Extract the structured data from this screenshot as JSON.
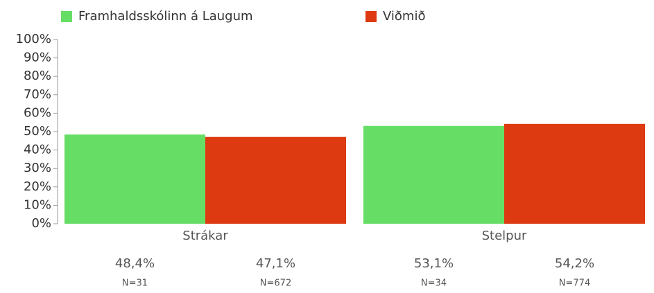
{
  "chart_data": {
    "type": "bar",
    "categories": [
      "Strákar",
      "Stelpur"
    ],
    "series": [
      {
        "name": "Framhaldsskólinn á Laugum",
        "color": "#66de66",
        "values": [
          48.4,
          53.1
        ],
        "value_labels": [
          "48,4%",
          "53,1%"
        ],
        "n_labels": [
          "N=31",
          "N=34"
        ]
      },
      {
        "name": "Viðmið",
        "color": "#dd3a12",
        "values": [
          47.1,
          54.2
        ],
        "value_labels": [
          "47,1%",
          "54,2%"
        ],
        "n_labels": [
          "N=672",
          "N=774"
        ]
      }
    ],
    "ylim": [
      0,
      100
    ],
    "yticks": [
      {
        "value": 0,
        "label": "0%"
      },
      {
        "value": 10,
        "label": "10%"
      },
      {
        "value": 20,
        "label": "20%"
      },
      {
        "value": 30,
        "label": "30%"
      },
      {
        "value": 40,
        "label": "40%"
      },
      {
        "value": 50,
        "label": "50%"
      },
      {
        "value": 60,
        "label": "60%"
      },
      {
        "value": 70,
        "label": "70%"
      },
      {
        "value": 80,
        "label": "80%"
      },
      {
        "value": 90,
        "label": "90%"
      },
      {
        "value": 100,
        "label": "100%"
      }
    ],
    "legend": "top",
    "grid": false
  }
}
